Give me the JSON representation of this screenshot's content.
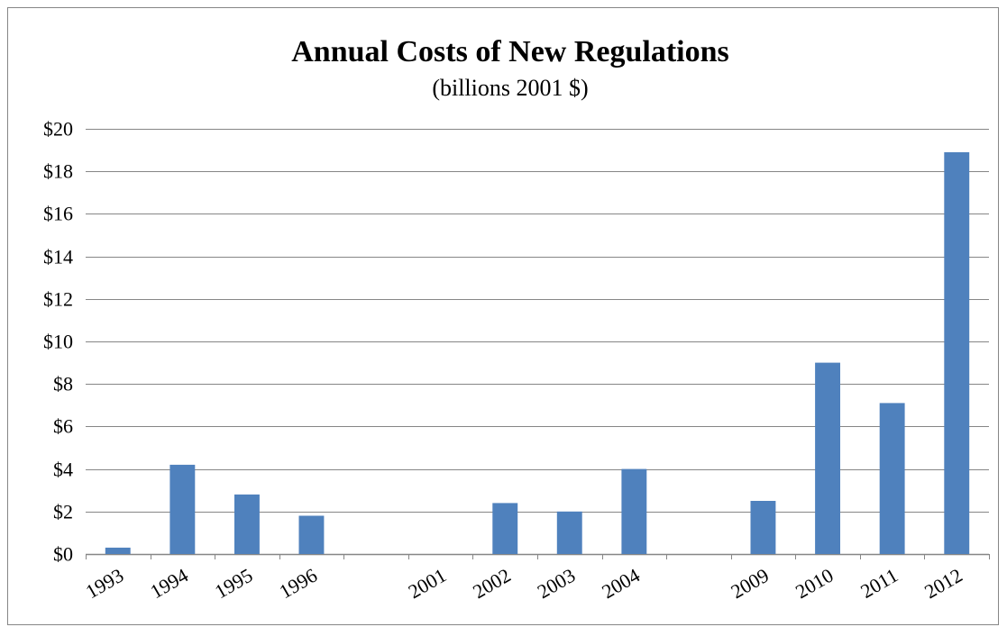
{
  "chart_data": {
    "type": "bar",
    "title": "Annual Costs of New Regulations",
    "subtitle": "(billions 2001 $)",
    "xlabel": "",
    "ylabel": "",
    "categories": [
      "1993",
      "1994",
      "1995",
      "1996",
      "",
      "2001",
      "2002",
      "2003",
      "2004",
      "",
      "2009",
      "2010",
      "2011",
      "2012"
    ],
    "values": [
      0.3,
      4.2,
      2.8,
      1.8,
      null,
      0,
      2.4,
      2.0,
      4.0,
      null,
      2.5,
      9.0,
      7.1,
      18.9
    ],
    "ylim": [
      0,
      20
    ],
    "yticks": [
      0,
      2,
      4,
      6,
      8,
      10,
      12,
      14,
      16,
      18,
      20
    ],
    "ytick_labels": [
      "$0",
      "$2",
      "$4",
      "$6",
      "$8",
      "$10",
      "$12",
      "$14",
      "$16",
      "$18",
      "$20"
    ],
    "grid": true,
    "legend": "none",
    "bar_color": "#4F81BD",
    "grid_color": "#868686"
  }
}
